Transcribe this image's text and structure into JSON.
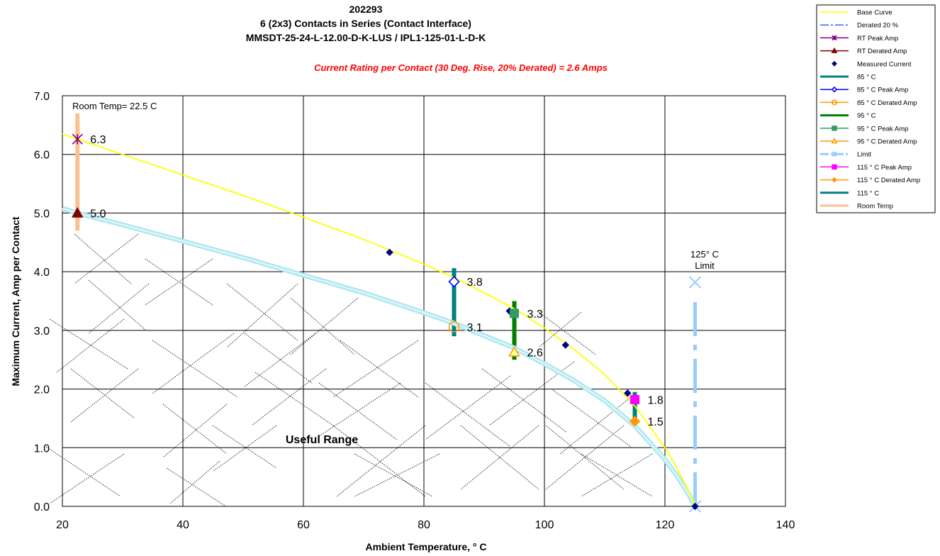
{
  "chart_data": {
    "type": "line",
    "title_lines": [
      "202293",
      "6 (2x3) Contacts in Series (Contact Interface)",
      "MMSDT-25-24-L-12.00-D-K-LUS / IPL1-125-01-L-D-K"
    ],
    "subtitle": "Current Rating per Contact (30 Deg. Rise, 20% Derated)  = 2.6 Amps",
    "xlabel": "Ambient Temperature,  ° C",
    "ylabel": "Maximum Current, Amp per Contact",
    "xlim": [
      20,
      140
    ],
    "ylim": [
      0,
      7
    ],
    "xticks": [
      "20",
      "40",
      "60",
      "80",
      "100",
      "120",
      "140"
    ],
    "yticks": [
      "0.0",
      "1.0",
      "2.0",
      "3.0",
      "4.0",
      "5.0",
      "6.0",
      "7.0"
    ],
    "grid": true,
    "legend_position": "right",
    "series": [
      {
        "name": "Base Curve",
        "color": "#ffff00",
        "style": "line",
        "x": [
          20,
          22.5,
          30,
          40,
          50,
          60,
          70,
          80,
          85,
          90,
          95,
          100,
          105,
          110,
          115,
          118,
          120,
          122,
          124,
          125
        ],
        "y": [
          6.35,
          6.26,
          6.0,
          5.65,
          5.3,
          4.93,
          4.55,
          4.13,
          3.9,
          3.64,
          3.37,
          3.04,
          2.67,
          2.25,
          1.71,
          1.29,
          1.0,
          0.65,
          0.25,
          0.0
        ]
      },
      {
        "name": "Derated 20 %",
        "color": "#3366ff",
        "style": "line",
        "x": [
          20,
          22.5,
          30,
          40,
          50,
          60,
          70,
          80,
          85,
          90,
          95,
          100,
          105,
          110,
          115,
          118,
          120,
          122,
          124,
          125
        ],
        "y": [
          5.08,
          5.0,
          4.8,
          4.52,
          4.24,
          3.94,
          3.64,
          3.3,
          3.12,
          2.91,
          2.7,
          2.43,
          2.14,
          1.8,
          1.37,
          1.03,
          0.8,
          0.52,
          0.2,
          0.0
        ]
      },
      {
        "name": "RT Peak Amp",
        "color": "#800080",
        "style": "marker",
        "marker": "x",
        "x": [
          22.5
        ],
        "y": [
          6.26
        ]
      },
      {
        "name": "RT Derated Amp",
        "color": "#800000",
        "style": "marker",
        "marker": "triangle",
        "x": [
          22.5
        ],
        "y": [
          5.0
        ]
      },
      {
        "name": "Measured Current",
        "color": "#000080",
        "style": "marker",
        "marker": "diamond",
        "x": [
          74.3,
          84.7,
          94.2,
          103.5,
          113.8,
          125
        ],
        "y": [
          4.33,
          3.83,
          3.33,
          2.75,
          1.93,
          0.0
        ]
      },
      {
        "name": "85 ° C",
        "color": "#008080",
        "style": "vline",
        "x": [
          85,
          85
        ],
        "y": [
          2.9,
          4.06
        ]
      },
      {
        "name": "85  ° C Peak Amp",
        "color": "#0000ff",
        "style": "marker",
        "marker": "diamond-open",
        "x": [
          85
        ],
        "y": [
          3.83
        ]
      },
      {
        "name": "85  ° C Derated Amp",
        "color": "#ff9900",
        "style": "marker",
        "marker": "circle-open",
        "x": [
          85
        ],
        "y": [
          3.06
        ]
      },
      {
        "name": "95  ° C",
        "color": "#008000",
        "style": "vline",
        "x": [
          95,
          95
        ],
        "y": [
          2.5,
          3.5
        ]
      },
      {
        "name": "95  ° C Peak Amp",
        "color": "#339966",
        "style": "marker",
        "marker": "square",
        "x": [
          95
        ],
        "y": [
          3.29
        ]
      },
      {
        "name": "95  ° C Derated Amp",
        "color": "#ff9900",
        "style": "marker",
        "marker": "triangle-open",
        "x": [
          95
        ],
        "y": [
          2.63
        ]
      },
      {
        "name": "Limit",
        "color": "#99ccff",
        "style": "dashed-vline",
        "x": [
          125,
          125
        ],
        "y": [
          0.0,
          3.82
        ]
      },
      {
        "name": "115  ° C Peak Amp",
        "color": "#ff00ff",
        "style": "marker",
        "marker": "square",
        "x": [
          115
        ],
        "y": [
          1.82
        ]
      },
      {
        "name": "115  ° C Derated Amp",
        "color": "#ff9900",
        "style": "marker",
        "marker": "diamond",
        "x": [
          115
        ],
        "y": [
          1.45
        ]
      },
      {
        "name": "115  ° C",
        "color": "#008080",
        "style": "vline",
        "x": [
          115,
          115
        ],
        "y": [
          1.4,
          1.95
        ]
      },
      {
        "name": "Room Temp",
        "color": "#fac090",
        "style": "vline",
        "x": [
          22.5,
          22.5
        ],
        "y": [
          4.7,
          6.7
        ]
      }
    ],
    "data_labels": [
      {
        "text": "6.3",
        "x": 22.5,
        "y": 6.26
      },
      {
        "text": "5.0",
        "x": 22.5,
        "y": 5.0
      },
      {
        "text": "3.8",
        "x": 85,
        "y": 3.83
      },
      {
        "text": "3.1",
        "x": 85,
        "y": 3.06
      },
      {
        "text": "3.3",
        "x": 95,
        "y": 3.29
      },
      {
        "text": "2.6",
        "x": 95,
        "y": 2.63
      },
      {
        "text": "1.8",
        "x": 115,
        "y": 1.82
      },
      {
        "text": "1.5",
        "x": 115,
        "y": 1.45
      }
    ],
    "annotations": {
      "room_temp": "Room Temp= 22.5 C",
      "limit_line1": "125° C",
      "limit_line2": "Limit",
      "useful_range": "Useful Range"
    }
  }
}
